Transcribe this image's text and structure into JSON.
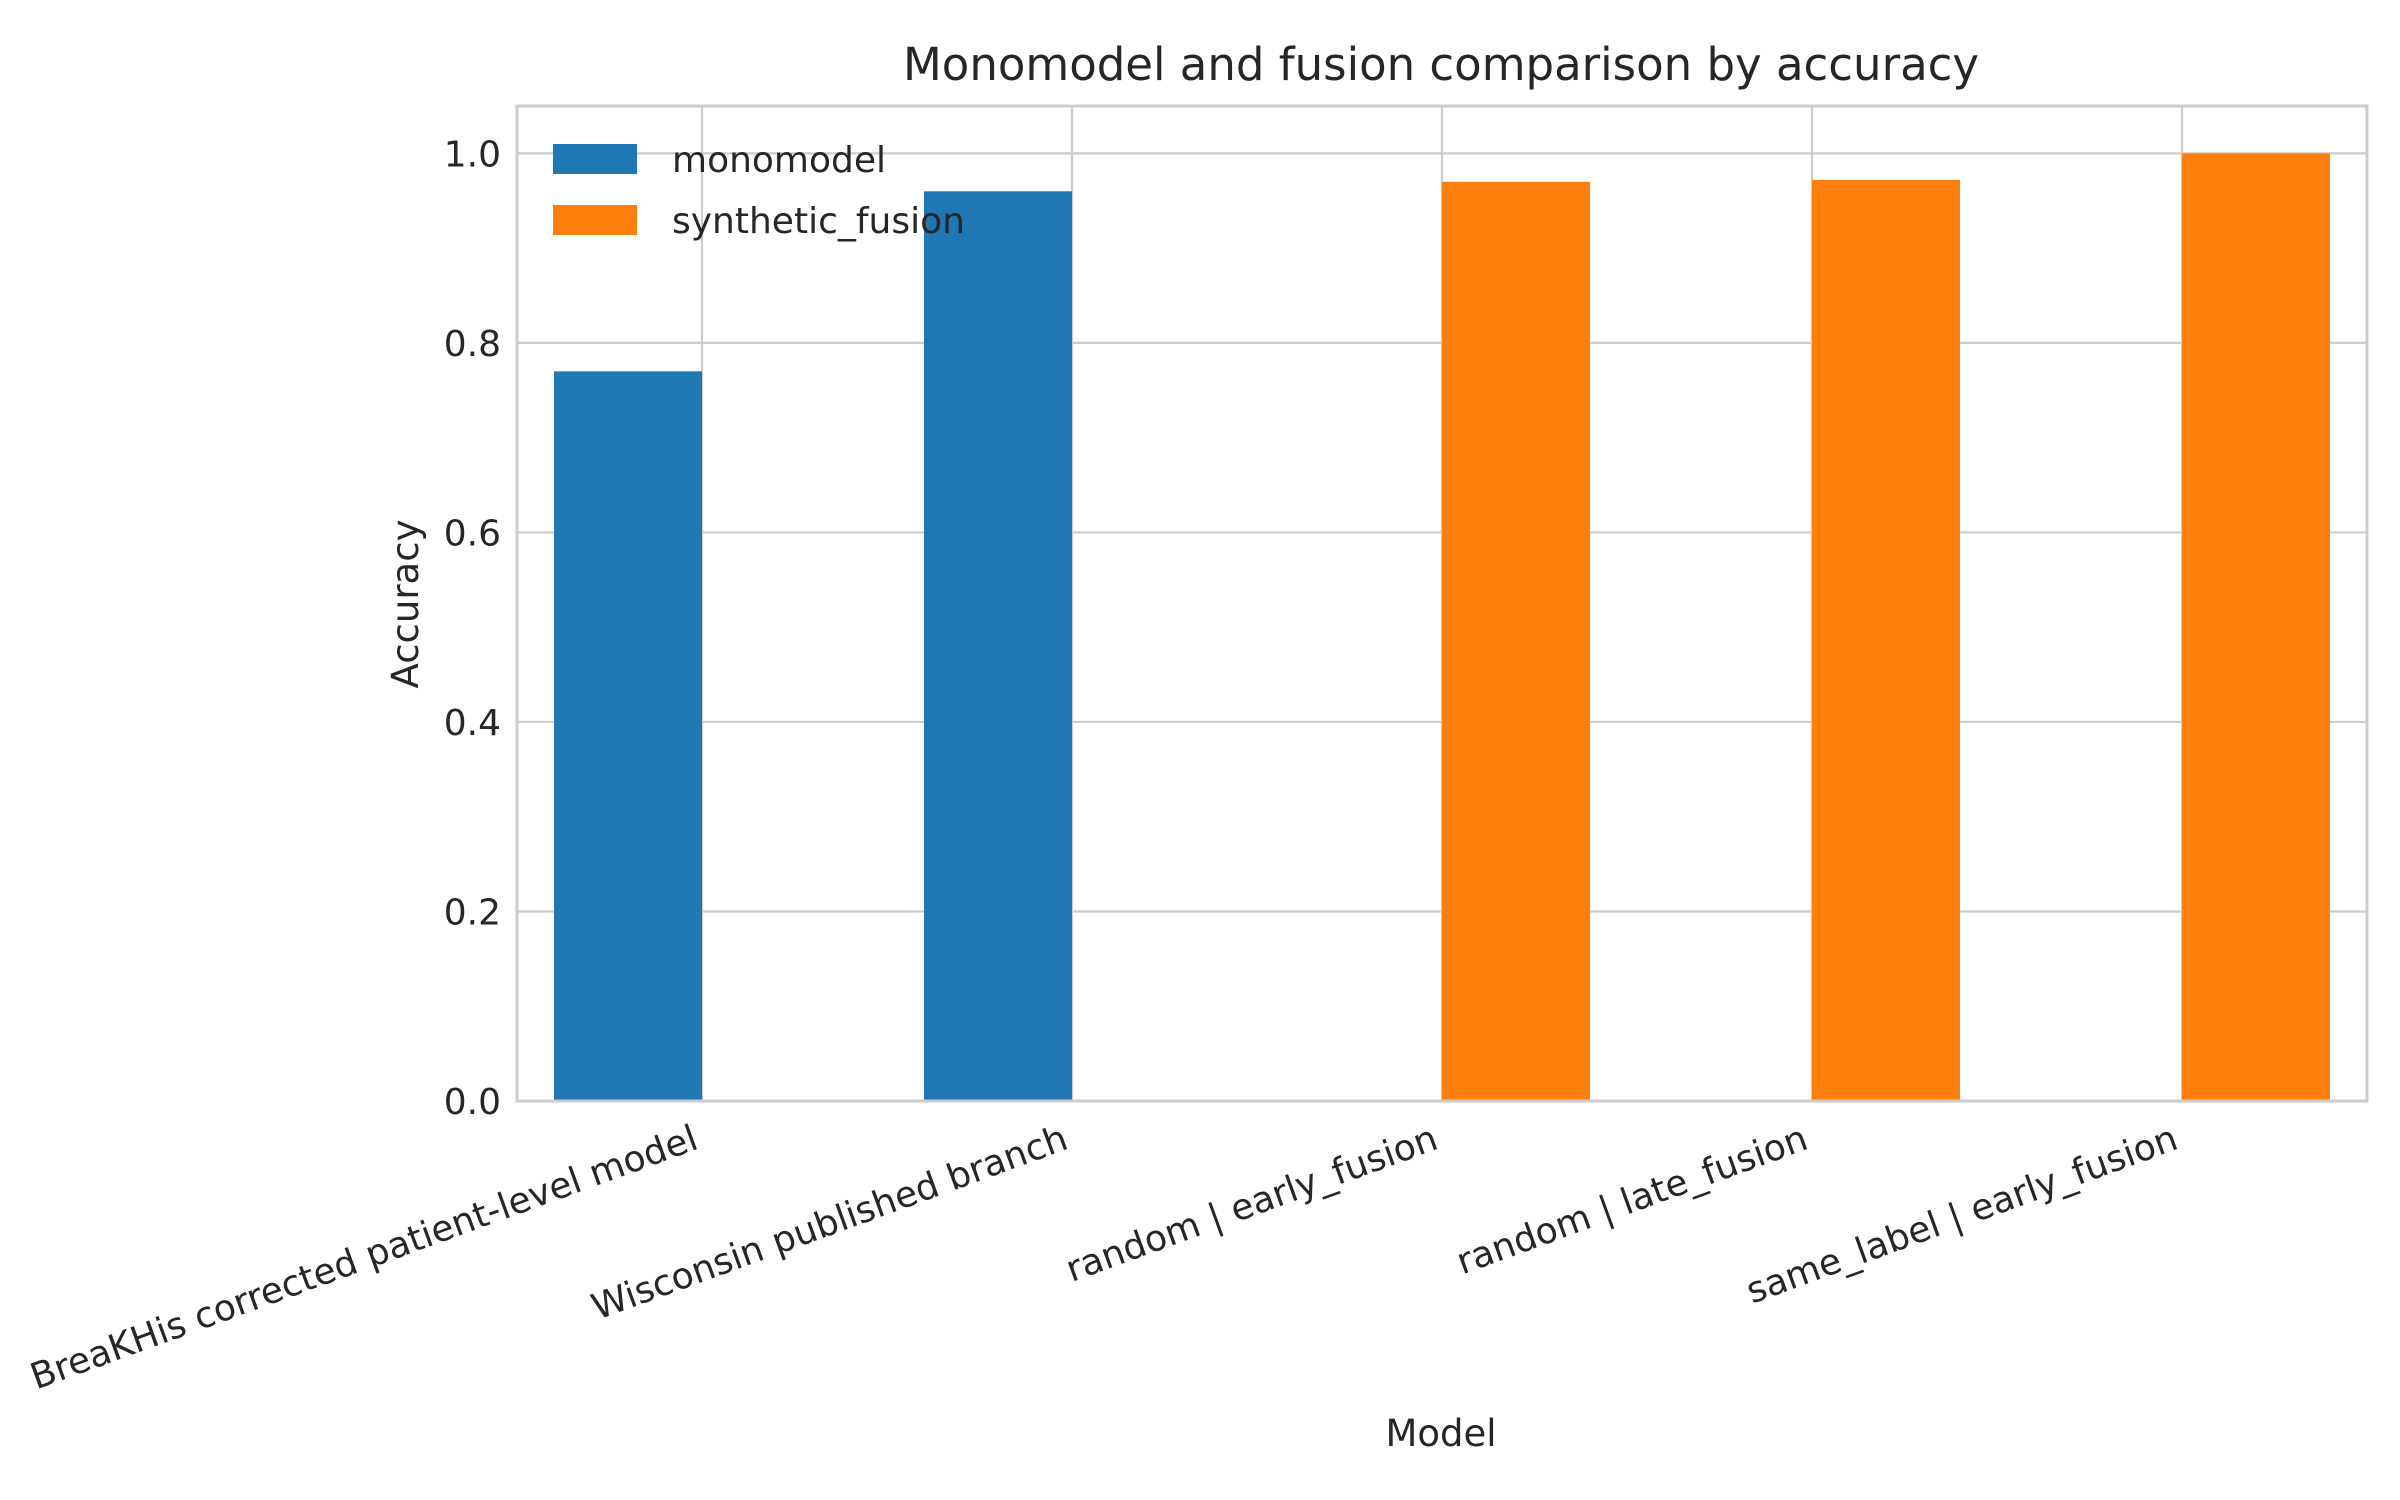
{
  "chart_data": {
    "type": "bar",
    "title": "Monomodel and fusion comparison by accuracy",
    "xlabel": "Model",
    "ylabel": "Accuracy",
    "ylim": [
      0,
      1.05
    ],
    "yticks": [
      0.0,
      0.2,
      0.4,
      0.6,
      0.8,
      1.0
    ],
    "ytick_labels": [
      "0.0",
      "0.2",
      "0.4",
      "0.6",
      "0.8",
      "1.0"
    ],
    "grid": true,
    "legend_position": "top-left",
    "categories": [
      "BreaKHis corrected patient-level model",
      "Wisconsin published branch",
      "random | early_fusion",
      "random | late_fusion",
      "same_label | early_fusion"
    ],
    "series": [
      {
        "name": "monomodel",
        "color": "#1f77b4",
        "values": [
          0.77,
          0.96,
          null,
          null,
          null
        ]
      },
      {
        "name": "synthetic_fusion",
        "color": "#ff7f0e",
        "values": [
          null,
          null,
          0.97,
          0.972,
          1.0
        ]
      }
    ]
  }
}
